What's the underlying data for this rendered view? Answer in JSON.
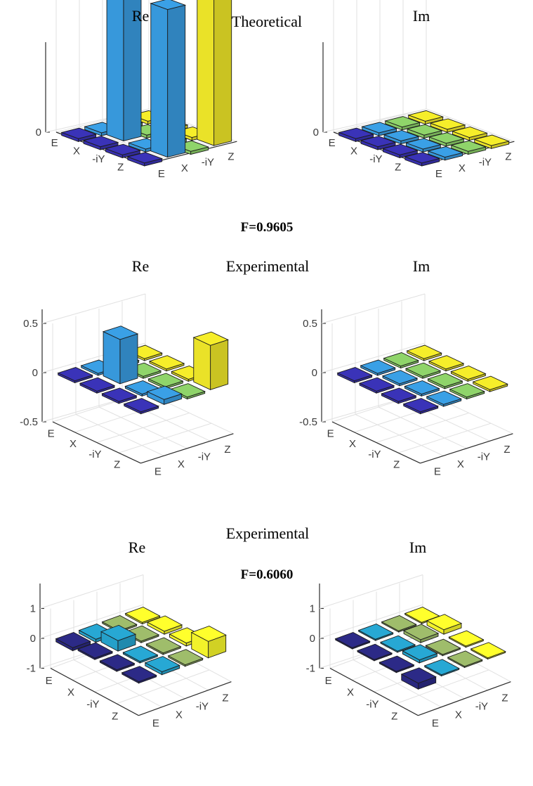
{
  "section_titles": {
    "theoretical": "Theoretical",
    "experimental_1": "Experimental",
    "experimental_2": "Experimental"
  },
  "fidelities": {
    "f1": "F=0.9605",
    "f2": "F=0.6060"
  },
  "colors": {
    "E": "#3a33b8",
    "X": "#3aa0e6",
    "iY": "#8fd46a",
    "Z": "#f6ee2a",
    "row3_E": "#2c2a87",
    "row3_X": "#27a8d4",
    "row3_iY": "#9fbd6b",
    "row3_Z": "#ffff2c"
  },
  "chart_data": [
    {
      "type": "bar3d",
      "title": "Re",
      "section": "Theoretical",
      "row_labels": [
        "E",
        "X",
        "-iY",
        "Z"
      ],
      "col_labels": [
        "E",
        "X",
        "-iY",
        "Z"
      ],
      "zlim": [
        0,
        0.5
      ],
      "zticks": [
        "0",
        "0.5"
      ],
      "values": [
        [
          0,
          0,
          0,
          0
        ],
        [
          0,
          0.5,
          0,
          0
        ],
        [
          0,
          0,
          0,
          0
        ],
        [
          0,
          0,
          0,
          0.5
        ]
      ],
      "extra_values": [
        [
          0,
          0,
          0,
          0
        ],
        [
          0,
          0,
          0,
          0
        ],
        [
          0,
          0,
          0,
          0
        ],
        [
          0,
          0.5,
          0,
          0.5
        ]
      ]
    },
    {
      "type": "bar3d",
      "title": "Im",
      "section": "Theoretical",
      "row_labels": [
        "E",
        "X",
        "-iY",
        "Z"
      ],
      "col_labels": [
        "E",
        "X",
        "-iY",
        "Z"
      ],
      "zlim": [
        0,
        0.5
      ],
      "zticks": [
        "0",
        "0.5"
      ],
      "values": [
        [
          0,
          0,
          0,
          0
        ],
        [
          0,
          0,
          0,
          0
        ],
        [
          0,
          0,
          0,
          0
        ],
        [
          0,
          0,
          0,
          0
        ]
      ]
    },
    {
      "type": "bar3d",
      "title": "Re",
      "section": "Experimental",
      "row_labels": [
        "E",
        "X",
        "-iY",
        "Z"
      ],
      "col_labels": [
        "E",
        "X",
        "-iY",
        "Z"
      ],
      "zlim": [
        -0.5,
        0.5
      ],
      "zticks": [
        "-0.5",
        "0",
        "0.5"
      ],
      "values": [
        [
          0,
          0,
          0,
          0
        ],
        [
          0,
          0.45,
          0,
          0
        ],
        [
          0,
          0,
          0,
          0
        ],
        [
          0,
          0.05,
          0,
          0.45
        ]
      ]
    },
    {
      "type": "bar3d",
      "title": "Im",
      "section": "Experimental",
      "row_labels": [
        "E",
        "X",
        "-iY",
        "Z"
      ],
      "col_labels": [
        "E",
        "X",
        "-iY",
        "Z"
      ],
      "zlim": [
        -0.5,
        0.5
      ],
      "zticks": [
        "-0.5",
        "0",
        "0.5"
      ],
      "values": [
        [
          0,
          0,
          0,
          0
        ],
        [
          0,
          0,
          0,
          0
        ],
        [
          0,
          0,
          0,
          0
        ],
        [
          0,
          0,
          0,
          0
        ]
      ]
    },
    {
      "type": "bar3d",
      "title": "Re",
      "section": "Experimental",
      "row_labels": [
        "E",
        "X",
        "-iY",
        "Z"
      ],
      "col_labels": [
        "E",
        "X",
        "-iY",
        "Z"
      ],
      "zlim": [
        -1,
        1
      ],
      "zticks": [
        "-1",
        "0",
        "1"
      ],
      "values": [
        [
          -0.1,
          -0.1,
          -0.05,
          -0.05
        ],
        [
          0.05,
          0.35,
          0.05,
          0.1
        ],
        [
          0.05,
          0.05,
          0.05,
          0.1
        ],
        [
          0.05,
          0.1,
          0.05,
          0.55
        ]
      ]
    },
    {
      "type": "bar3d",
      "title": "Im",
      "section": "Experimental",
      "row_labels": [
        "E",
        "X",
        "-iY",
        "Z"
      ],
      "col_labels": [
        "E",
        "X",
        "-iY",
        "Z"
      ],
      "zlim": [
        -1,
        1
      ],
      "zticks": [
        "-1",
        "0",
        "1"
      ],
      "values": [
        [
          0,
          0,
          0,
          0
        ],
        [
          0,
          0,
          0.1,
          0.15
        ],
        [
          0,
          0.1,
          0,
          0
        ],
        [
          -0.2,
          0,
          0,
          0
        ]
      ]
    }
  ]
}
